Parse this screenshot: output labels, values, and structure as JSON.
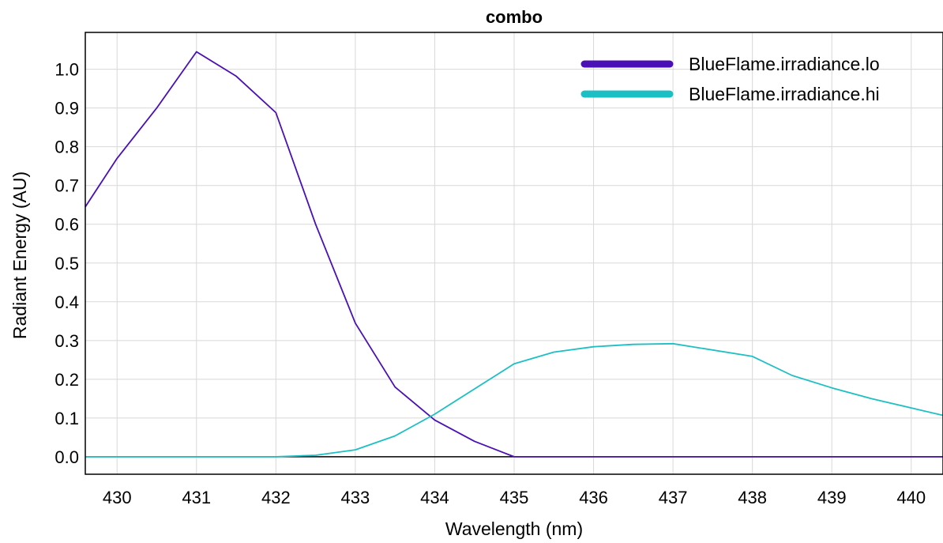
{
  "chart_data": {
    "type": "line",
    "title": "combo",
    "xlabel": "Wavelength (nm)",
    "ylabel": "Radiant Energy (AU)",
    "xlim": [
      429.6,
      440.4
    ],
    "ylim": [
      -0.045,
      1.095
    ],
    "x_ticks": [
      430,
      431,
      432,
      433,
      434,
      435,
      436,
      437,
      438,
      439,
      440
    ],
    "y_ticks": [
      "0.0",
      "0.1",
      "0.2",
      "0.3",
      "0.4",
      "0.5",
      "0.6",
      "0.7",
      "0.8",
      "0.9",
      "1.0"
    ],
    "grid": true,
    "legend_position": "top-right",
    "series": [
      {
        "name": "BlueFlame.irradiance.lo",
        "color": "#4a0fb5",
        "x": [
          429.6,
          430,
          430.5,
          431,
          431.5,
          432,
          432.5,
          433,
          433.5,
          434,
          434.5,
          435,
          435.5,
          436,
          437,
          438,
          439,
          440,
          440.4
        ],
        "y": [
          0.645,
          0.77,
          0.9,
          1.045,
          0.982,
          0.888,
          0.6,
          0.345,
          0.18,
          0.095,
          0.04,
          0.0,
          0.0,
          0.0,
          0.0,
          0.0,
          0.0,
          0.0,
          0.0
        ]
      },
      {
        "name": "BlueFlame.irradiance.hi",
        "color": "#1cc0c4",
        "x": [
          429.6,
          430,
          431,
          432,
          432.5,
          433,
          433.5,
          434,
          434.5,
          435,
          435.5,
          436,
          436.5,
          437,
          438,
          438.5,
          439,
          439.5,
          440,
          440.4
        ],
        "y": [
          0.0,
          0.0,
          0.0,
          0.0,
          0.004,
          0.018,
          0.054,
          0.11,
          0.175,
          0.24,
          0.27,
          0.284,
          0.29,
          0.292,
          0.259,
          0.21,
          0.178,
          0.15,
          0.126,
          0.107
        ]
      }
    ]
  }
}
